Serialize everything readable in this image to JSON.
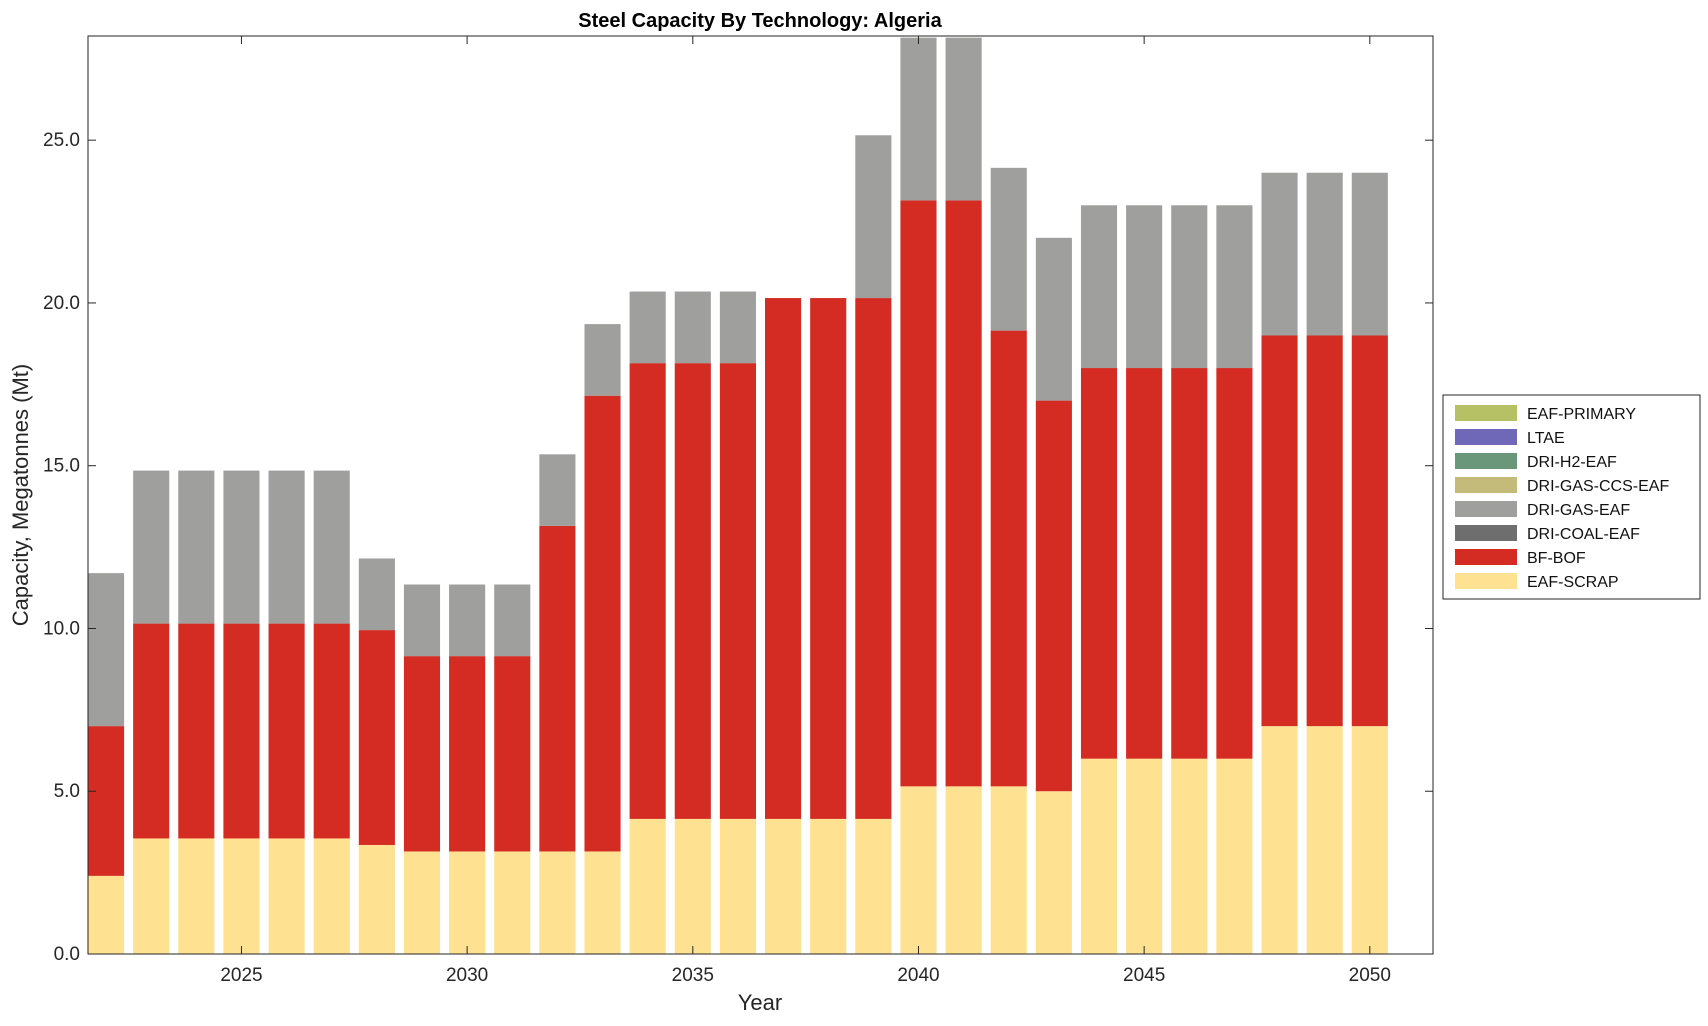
{
  "chart_data": {
    "type": "bar",
    "stacked": true,
    "title": "Steel Capacity By Technology: Algeria",
    "xlabel": "Year",
    "ylabel": "Capacity, Megatonnes (Mt)",
    "xlim": [
      2021.6,
      2051.4
    ],
    "ylim": [
      0,
      28.2
    ],
    "xticks": [
      2025,
      2030,
      2035,
      2040,
      2045,
      2050
    ],
    "xtick_labels": [
      "2025",
      "2030",
      "2035",
      "2040",
      "2045",
      "2050"
    ],
    "yticks": [
      0,
      5,
      10,
      15,
      20,
      25
    ],
    "ytick_labels": [
      "0.0",
      "5.0",
      "10.0",
      "15.0",
      "20.0",
      "25.0"
    ],
    "legend_position": "outside-right",
    "categories": [
      2022,
      2023,
      2024,
      2025,
      2026,
      2027,
      2028,
      2029,
      2030,
      2031,
      2032,
      2033,
      2034,
      2035,
      2036,
      2037,
      2038,
      2039,
      2040,
      2041,
      2042,
      2043,
      2044,
      2045,
      2046,
      2047,
      2048,
      2049,
      2050
    ],
    "series": [
      {
        "name": "EAF-SCRAP",
        "color": "#FEE292",
        "values": [
          2.4,
          3.55,
          3.55,
          3.55,
          3.55,
          3.55,
          3.35,
          3.15,
          3.15,
          3.15,
          3.15,
          3.15,
          4.15,
          4.15,
          4.15,
          4.15,
          4.15,
          4.15,
          5.15,
          5.15,
          5.15,
          5.0,
          6.0,
          6.0,
          6.0,
          6.0,
          7.0,
          7.0,
          7.0
        ]
      },
      {
        "name": "BF-BOF",
        "color": "#D42B23",
        "values": [
          4.6,
          6.6,
          6.6,
          6.6,
          6.6,
          6.6,
          6.6,
          6.0,
          6.0,
          6.0,
          10.0,
          14.0,
          14.0,
          14.0,
          14.0,
          16.0,
          16.0,
          16.0,
          18.0,
          18.0,
          14.0,
          12.0,
          12.0,
          12.0,
          12.0,
          12.0,
          12.0,
          12.0,
          12.0
        ]
      },
      {
        "name": "DRI-COAL-EAF",
        "color": "#6E6E6E",
        "values": [
          0,
          0,
          0,
          0,
          0,
          0,
          0,
          0,
          0,
          0,
          0,
          0,
          0,
          0,
          0,
          0,
          0,
          0,
          0,
          0,
          0,
          0,
          0,
          0,
          0,
          0,
          0,
          0,
          0
        ]
      },
      {
        "name": "DRI-GAS-EAF",
        "color": "#9F9F9D",
        "values": [
          4.7,
          4.7,
          4.7,
          4.7,
          4.7,
          4.7,
          2.2,
          2.2,
          2.2,
          2.2,
          2.2,
          2.2,
          2.2,
          2.2,
          2.2,
          0,
          0,
          5.0,
          5.0,
          5.0,
          5.0,
          5.0,
          5.0,
          5.0,
          5.0,
          5.0,
          5.0,
          5.0,
          5.0
        ]
      },
      {
        "name": "DRI-GAS-CCS-EAF",
        "color": "#C4BB7A",
        "values": [
          0,
          0,
          0,
          0,
          0,
          0,
          0,
          0,
          0,
          0,
          0,
          0,
          0,
          0,
          0,
          0,
          0,
          0,
          0,
          0,
          0,
          0,
          0,
          0,
          0,
          0,
          0,
          0,
          0
        ]
      },
      {
        "name": "DRI-H2-EAF",
        "color": "#6A977A",
        "values": [
          0,
          0,
          0,
          0,
          0,
          0,
          0,
          0,
          0,
          0,
          0,
          0,
          0,
          0,
          0,
          0,
          0,
          0,
          0,
          0,
          0,
          0,
          0,
          0,
          0,
          0,
          0,
          0,
          0
        ]
      },
      {
        "name": "LTAE",
        "color": "#6F67B8",
        "values": [
          0,
          0,
          0,
          0,
          0,
          0,
          0,
          0,
          0,
          0,
          0,
          0,
          0,
          0,
          0,
          0,
          0,
          0,
          0,
          0,
          0,
          0,
          0,
          0,
          0,
          0,
          0,
          0,
          0
        ]
      },
      {
        "name": "EAF-PRIMARY",
        "color": "#B6C064",
        "values": [
          0,
          0,
          0,
          0,
          0,
          0,
          0,
          0,
          0,
          0,
          0,
          0,
          0,
          0,
          0,
          0,
          0,
          0,
          0,
          0,
          0,
          0,
          0,
          0,
          0,
          0,
          0,
          0,
          0
        ]
      }
    ],
    "legend_order": [
      "EAF-PRIMARY",
      "LTAE",
      "DRI-H2-EAF",
      "DRI-GAS-CCS-EAF",
      "DRI-GAS-EAF",
      "DRI-COAL-EAF",
      "BF-BOF",
      "EAF-SCRAP"
    ]
  }
}
